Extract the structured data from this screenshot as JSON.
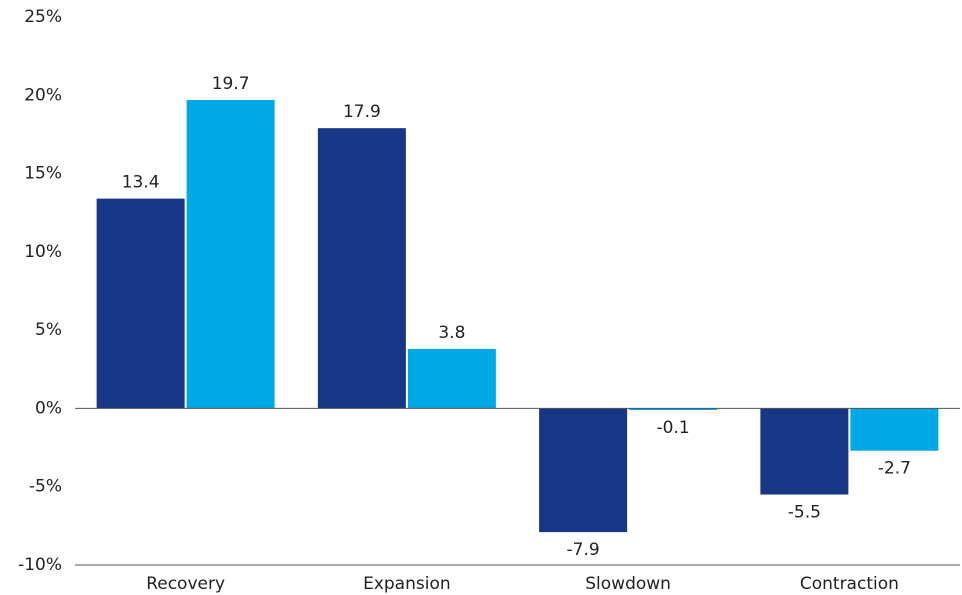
{
  "chart_data": {
    "type": "bar",
    "categories": [
      "Recovery",
      "Expansion",
      "Slowdown",
      "Contraction"
    ],
    "series": [
      {
        "color": "#173686",
        "values": [
          13.4,
          17.9,
          -7.9,
          -5.5
        ]
      },
      {
        "color": "#00a9e6",
        "values": [
          19.7,
          3.8,
          -0.1,
          -2.7
        ]
      }
    ],
    "ylim": [
      -10,
      25
    ],
    "yticks": [
      {
        "value": -10,
        "label": "-10%"
      },
      {
        "value": -5,
        "label": "-5%"
      },
      {
        "value": 0,
        "label": "0%"
      },
      {
        "value": 5,
        "label": "5%"
      },
      {
        "value": 10,
        "label": "10%"
      },
      {
        "value": 15,
        "label": "15%"
      },
      {
        "value": 20,
        "label": "20%"
      },
      {
        "value": 25,
        "label": "25%"
      }
    ],
    "grid": false
  }
}
